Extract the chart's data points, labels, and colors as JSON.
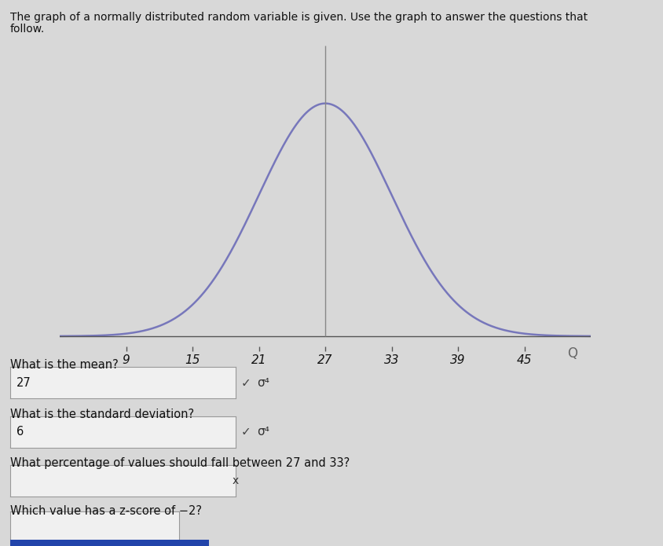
{
  "title_line1": "The graph of a normally distributed random variable is given. Use the graph to answer the questions that",
  "title_line2": "follow.",
  "mean": 27,
  "std": 6,
  "x_ticks": [
    9,
    15,
    21,
    27,
    33,
    39,
    45
  ],
  "x_min": 3,
  "x_max": 51,
  "curve_color": "#7777bb",
  "axis_color": "#555555",
  "mean_line_color": "#888888",
  "bg_color": "#d8d8d8",
  "plot_bg_color": "#d8d8d8",
  "q1_label": "What is the mean?",
  "q1_answer": "27",
  "q1_suffix": "σ⁴",
  "q2_label": "What is the standard deviation?",
  "q2_answer": "6",
  "q2_suffix": "σ⁴",
  "q3_label": "What percentage of values should fall between 27 and 33?",
  "q4_label": "Which value has a z-score of −2?",
  "checkmark": "✓",
  "search_icon": "Q",
  "box_bg": "#f0f0f0",
  "box_border": "#999999",
  "cursor_x": "x"
}
